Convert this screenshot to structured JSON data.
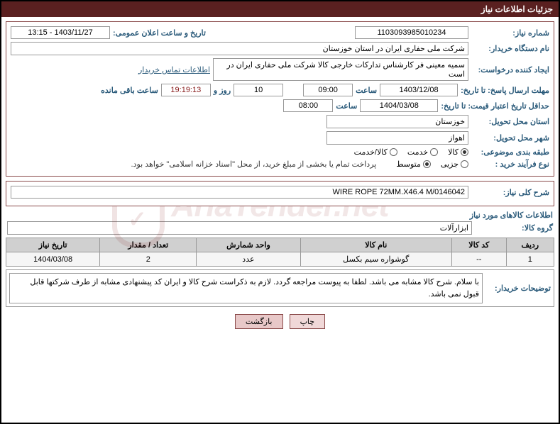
{
  "header": {
    "title": "جزئیات اطلاعات نیاز"
  },
  "section1": {
    "need_number_label": "شماره نیاز:",
    "need_number": "1103093985010234",
    "announce_label": "تاریخ و ساعت اعلان عمومی:",
    "announce_value": "1403/11/27 - 13:15",
    "buyer_label": "نام دستگاه خریدار:",
    "buyer_value": "شرکت ملی حفاری ایران در استان خوزستان",
    "requester_label": "ایجاد کننده درخواست:",
    "requester_value": "سمیه معینی فر کارشناس تدارکات خارجی کالا شرکت ملی حفاری ایران در است",
    "contact_link": "اطلاعات تماس خریدار",
    "deadline_label": "مهلت ارسال پاسخ: تا تاریخ:",
    "deadline_date": "1403/12/08",
    "time_label": "ساعت",
    "deadline_time": "09:00",
    "days_value": "10",
    "days_label": "روز و",
    "countdown": "19:19:13",
    "remaining_label": "ساعت باقی مانده",
    "validity_label": "حداقل تاریخ اعتبار قیمت: تا تاریخ:",
    "validity_date": "1404/03/08",
    "validity_time": "08:00",
    "province_label": "استان محل تحویل:",
    "province_value": "خوزستان",
    "city_label": "شهر محل تحویل:",
    "city_value": "اهواز",
    "category_label": "طبقه بندی موضوعی:",
    "cat_kala": "کالا",
    "cat_khedmat": "خدمت",
    "cat_both": "کالا/خدمت",
    "process_label": "نوع فرآیند خرید :",
    "proc_small": "جزیی",
    "proc_medium": "متوسط",
    "payment_note": "پرداخت تمام یا بخشی از مبلغ خرید، از محل \"اسناد خزانه اسلامی\" خواهد بود."
  },
  "section2": {
    "desc_label": "شرح کلی نیاز:",
    "desc_value": "WIRE ROPE 72MM.X46.4 M/0146042"
  },
  "items_header": "اطلاعات کالاهای مورد نیاز",
  "group_label": "گروه کالا:",
  "group_value": "ابزارآلات",
  "table": {
    "columns": [
      "ردیف",
      "کد کالا",
      "نام کالا",
      "واحد شمارش",
      "تعداد / مقدار",
      "تاریخ نیاز"
    ],
    "rows": [
      [
        "1",
        "--",
        "گوشواره سیم بکسل",
        "عدد",
        "2",
        "1404/03/08"
      ]
    ]
  },
  "buyer_notes_label": "توضیحات خریدار:",
  "buyer_notes": "با سلام. شرح کالا مشابه می باشد. لطفا به پیوست مراجعه گردد. لازم به ذکراست شرح کالا و ایران کد  پیشنهادی مشابه از طرف شرکتها قابل قبول نمی باشد.",
  "footer": {
    "print": "چاپ",
    "back": "بازگشت"
  },
  "colors": {
    "header_bg": "#5a2020",
    "label": "#2a5a7a",
    "border": "#8a4a4a"
  }
}
